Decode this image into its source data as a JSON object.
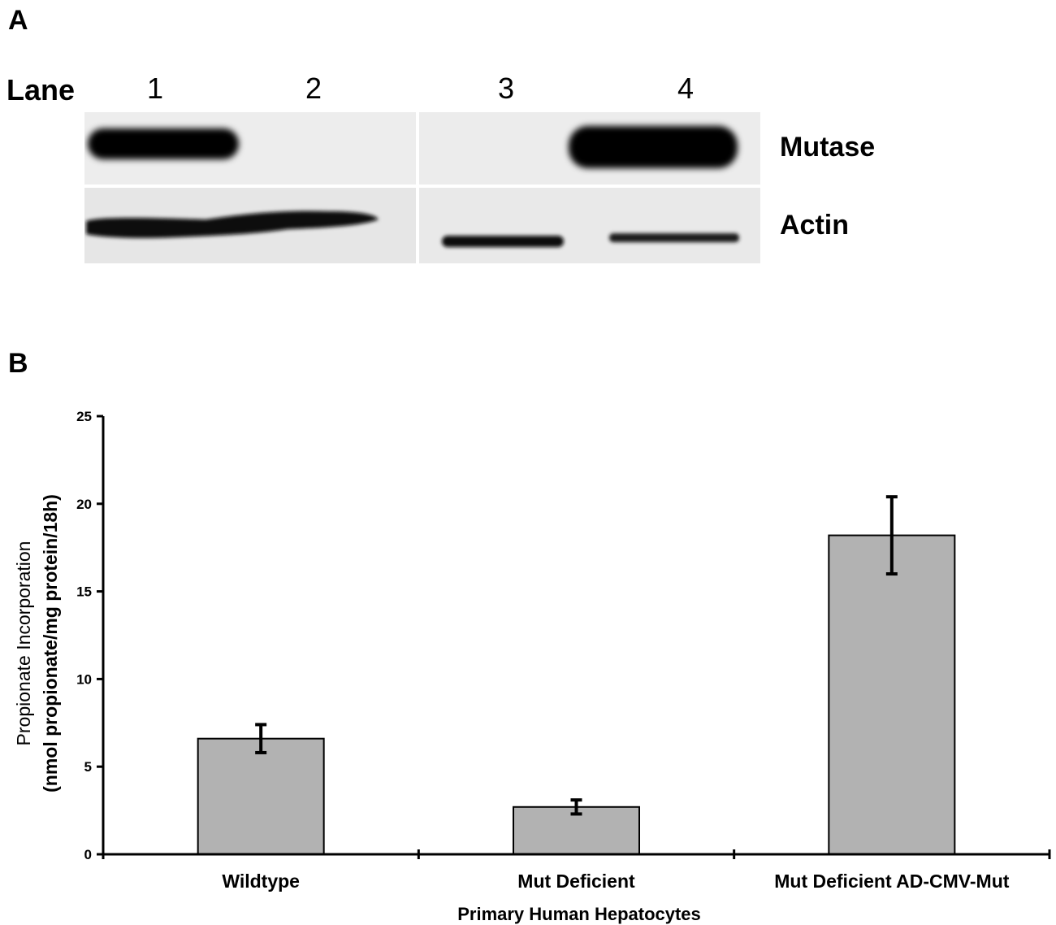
{
  "panel_a": {
    "label": "A",
    "lane_word": "Lane",
    "lanes": [
      "1",
      "2",
      "3",
      "4"
    ],
    "rows": [
      "Mutase",
      "Actin"
    ]
  },
  "panel_b": {
    "label": "B"
  },
  "chart_data": {
    "type": "bar",
    "categories": [
      "Wildtype",
      "Mut Deficient",
      "Mut Deficient AD-CMV-Mut"
    ],
    "values": [
      6.6,
      2.7,
      18.2
    ],
    "errors": [
      0.8,
      0.4,
      2.2
    ],
    "title": "",
    "xlabel": "Primary Human Hepatocytes",
    "ylabel": [
      "Propionate Incorporation",
      "(nmol propionate/mg protein/18h)"
    ],
    "ylim": [
      0,
      25
    ],
    "yticks": [
      0,
      5,
      10,
      15,
      20,
      25
    ],
    "bar_color": "#b2b2b2",
    "grid": false
  }
}
